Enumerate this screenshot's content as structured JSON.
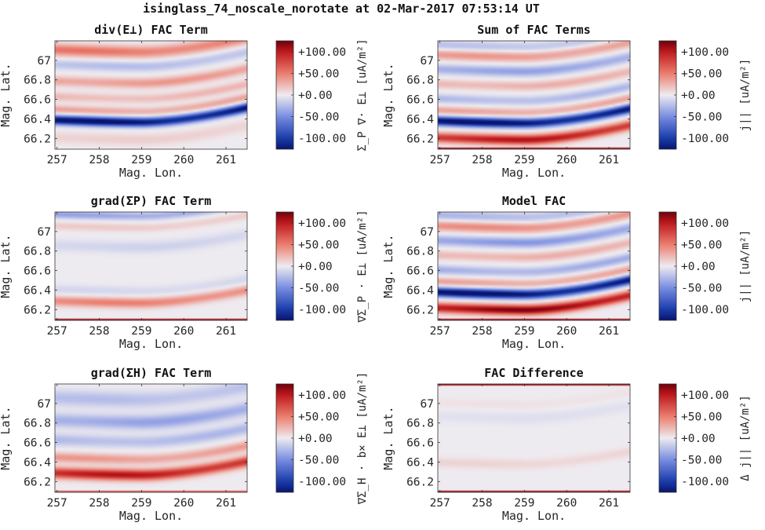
{
  "figure_title": "isinglass_74_noscale_norotate at 02-Mar-2017 07:53:14 UT",
  "chart_data": [
    {
      "type": "heatmap",
      "title": "div(E⊥) FAC Term",
      "xlabel": "Mag. Lon.",
      "ylabel": "Mag. Lat.",
      "xlim": [
        256.95,
        261.5
      ],
      "ylim": [
        66.09,
        67.2
      ],
      "xticks": [
        257,
        258,
        259,
        260,
        261
      ],
      "yticks": [
        66.2,
        66.4,
        66.6,
        66.8,
        67
      ],
      "yticklabels": [
        "66.2",
        "66.4",
        "66.6",
        "66.8",
        "67"
      ],
      "colorbar": {
        "label": "Σ_P ∇· E⊥ [uA/m²]",
        "ticks": [
          100,
          50,
          0,
          -50,
          -100
        ],
        "ticklabels": [
          "+100.00",
          "+50.00",
          "+0.00",
          "-50.00",
          "-100.00"
        ],
        "range": [
          -125,
          125
        ]
      },
      "field": {
        "bands": [
          {
            "lat": 66.38,
            "amp": -125,
            "width": 0.045
          },
          {
            "lat": 66.49,
            "amp": 30,
            "width": 0.04
          },
          {
            "lat": 66.62,
            "amp": 22,
            "width": 0.045
          },
          {
            "lat": 66.78,
            "amp": 35,
            "width": 0.05
          },
          {
            "lat": 66.95,
            "amp": -22,
            "width": 0.05
          },
          {
            "lat": 67.1,
            "amp": 50,
            "width": 0.06
          },
          {
            "lat": 66.2,
            "amp": 12,
            "width": 0.06
          }
        ],
        "curve": 0.16,
        "edge": 0
      }
    },
    {
      "type": "heatmap",
      "title": "Sum of FAC Terms",
      "xlabel": "Mag. Lon.",
      "ylabel": "Mag. Lat.",
      "xlim": [
        256.95,
        261.5
      ],
      "ylim": [
        66.09,
        67.2
      ],
      "xticks": [
        257,
        258,
        259,
        260,
        261
      ],
      "yticks": [
        66.2,
        66.4,
        66.6,
        66.8,
        67
      ],
      "yticklabels": [
        "66.2",
        "66.4",
        "66.6",
        "66.8",
        "67"
      ],
      "colorbar": {
        "label": "j|| [uA/m²]",
        "ticks": [
          100,
          50,
          0,
          -50,
          -100
        ],
        "ticklabels": [
          "+100.00",
          "+50.00",
          "+0.00",
          "-50.00",
          "-100.00"
        ],
        "range": [
          -125,
          125
        ]
      },
      "field": {
        "bands": [
          {
            "lat": 66.2,
            "amp": 95,
            "width": 0.05
          },
          {
            "lat": 66.37,
            "amp": -125,
            "width": 0.045
          },
          {
            "lat": 66.48,
            "amp": 30,
            "width": 0.04
          },
          {
            "lat": 66.6,
            "amp": -25,
            "width": 0.045
          },
          {
            "lat": 66.75,
            "amp": 25,
            "width": 0.045
          },
          {
            "lat": 66.9,
            "amp": -35,
            "width": 0.05
          },
          {
            "lat": 67.05,
            "amp": 35,
            "width": 0.05
          },
          {
            "lat": 67.15,
            "amp": -20,
            "width": 0.05
          }
        ],
        "curve": 0.16,
        "edge": 110
      }
    },
    {
      "type": "heatmap",
      "title": "grad(ΣP) FAC Term",
      "xlabel": "Mag. Lon.",
      "ylabel": "Mag. Lat.",
      "xlim": [
        256.95,
        261.5
      ],
      "ylim": [
        66.09,
        67.2
      ],
      "xticks": [
        257,
        258,
        259,
        260,
        261
      ],
      "yticks": [
        66.2,
        66.4,
        66.6,
        66.8,
        67
      ],
      "yticklabels": [
        "66.2",
        "66.4",
        "66.6",
        "66.8",
        "67"
      ],
      "colorbar": {
        "label": "∇Σ_P · E⊥ [uA/m²]",
        "ticks": [
          100,
          50,
          0,
          -50,
          -100
        ],
        "ticklabels": [
          "+100.00",
          "+50.00",
          "+0.00",
          "-50.00",
          "-100.00"
        ],
        "range": [
          -125,
          125
        ]
      },
      "field": {
        "bands": [
          {
            "lat": 66.28,
            "amp": 45,
            "width": 0.05
          },
          {
            "lat": 66.4,
            "amp": -10,
            "width": 0.05
          },
          {
            "lat": 66.85,
            "amp": -12,
            "width": 0.06
          },
          {
            "lat": 67.05,
            "amp": 14,
            "width": 0.04
          },
          {
            "lat": 67.17,
            "amp": -35,
            "width": 0.04
          }
        ],
        "curve": 0.14,
        "edge": 110
      }
    },
    {
      "type": "heatmap",
      "title": "Model FAC",
      "xlabel": "Mag. Lon.",
      "ylabel": "Mag. Lat.",
      "xlim": [
        256.95,
        261.5
      ],
      "ylim": [
        66.09,
        67.2
      ],
      "xticks": [
        257,
        258,
        259,
        260,
        261
      ],
      "yticks": [
        66.2,
        66.4,
        66.6,
        66.8,
        67
      ],
      "yticklabels": [
        "66.2",
        "66.4",
        "66.6",
        "66.8",
        "67"
      ],
      "colorbar": {
        "label": "j|| [uA/m²]",
        "ticks": [
          100,
          50,
          0,
          -50,
          -100
        ],
        "ticklabels": [
          "+100.00",
          "+50.00",
          "+0.00",
          "-50.00",
          "-100.00"
        ],
        "range": [
          -125,
          125
        ]
      },
      "field": {
        "bands": [
          {
            "lat": 66.21,
            "amp": 110,
            "width": 0.05
          },
          {
            "lat": 66.37,
            "amp": -125,
            "width": 0.045
          },
          {
            "lat": 66.48,
            "amp": 30,
            "width": 0.04
          },
          {
            "lat": 66.6,
            "amp": -30,
            "width": 0.045
          },
          {
            "lat": 66.75,
            "amp": 25,
            "width": 0.045
          },
          {
            "lat": 66.9,
            "amp": -40,
            "width": 0.05
          },
          {
            "lat": 67.05,
            "amp": 40,
            "width": 0.05
          },
          {
            "lat": 67.16,
            "amp": -25,
            "width": 0.05
          }
        ],
        "curve": 0.16,
        "edge": 110
      }
    },
    {
      "type": "heatmap",
      "title": "grad(ΣH) FAC Term",
      "xlabel": "Mag. Lon.",
      "ylabel": "Mag. Lat.",
      "xlim": [
        256.95,
        261.5
      ],
      "ylim": [
        66.09,
        67.2
      ],
      "xticks": [
        257,
        258,
        259,
        260,
        261
      ],
      "yticks": [
        66.2,
        66.4,
        66.6,
        66.8,
        67
      ],
      "yticklabels": [
        "66.2",
        "66.4",
        "66.6",
        "66.8",
        "67"
      ],
      "colorbar": {
        "label": "∇Σ_H · b× E⊥ [uA/m²]",
        "ticks": [
          100,
          50,
          0,
          -50,
          -100
        ],
        "ticklabels": [
          "+100.00",
          "+50.00",
          "+0.00",
          "-50.00",
          "-100.00"
        ],
        "range": [
          -125,
          125
        ]
      },
      "field": {
        "bands": [
          {
            "lat": 66.28,
            "amp": 95,
            "width": 0.055
          },
          {
            "lat": 66.44,
            "amp": 35,
            "width": 0.05
          },
          {
            "lat": 66.62,
            "amp": -25,
            "width": 0.06
          },
          {
            "lat": 66.82,
            "amp": -35,
            "width": 0.07
          },
          {
            "lat": 67.05,
            "amp": -22,
            "width": 0.08
          }
        ],
        "curve": 0.15,
        "edge": 70
      }
    },
    {
      "type": "heatmap",
      "title": "FAC Difference",
      "xlabel": "Mag. Lon.",
      "ylabel": "Mag. Lat.",
      "xlim": [
        256.95,
        261.5
      ],
      "ylim": [
        66.09,
        67.2
      ],
      "xticks": [
        257,
        258,
        259,
        260,
        261
      ],
      "yticks": [
        66.2,
        66.4,
        66.6,
        66.8,
        67
      ],
      "yticklabels": [
        "66.2",
        "66.4",
        "66.6",
        "66.8",
        "67"
      ],
      "colorbar": {
        "label": "Δ j|| [uA/m²]",
        "ticks": [
          100,
          50,
          0,
          -50,
          -100
        ],
        "ticklabels": [
          "+100.00",
          "+50.00",
          "+0.00",
          "-50.00",
          "-100.00"
        ],
        "range": [
          -125,
          125
        ]
      },
      "field": {
        "bands": [
          {
            "lat": 66.39,
            "amp": 10,
            "width": 0.05
          },
          {
            "lat": 66.86,
            "amp": -6,
            "width": 0.06
          },
          {
            "lat": 67.0,
            "amp": 4,
            "width": 0.05
          }
        ],
        "curve": 0.14,
        "edge": 110,
        "top_edge": true
      }
    }
  ]
}
